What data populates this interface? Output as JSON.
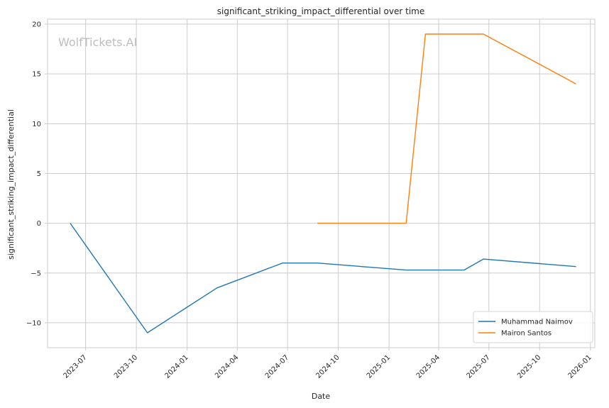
{
  "chart_data": {
    "type": "line",
    "title": "significant_striking_impact_differential over time",
    "xlabel": "Date",
    "ylabel": "significant_striking_impact_differential",
    "x_ticks": [
      "2023-07",
      "2023-10",
      "2024-01",
      "2024-04",
      "2024-07",
      "2024-10",
      "2025-01",
      "2025-04",
      "2025-07",
      "2025-10",
      "2026-01"
    ],
    "y_ticks": [
      20,
      15,
      10,
      5,
      0,
      -5,
      -10
    ],
    "y_tick_labels": [
      "20",
      "15",
      "10",
      "5",
      "0",
      "−5",
      "−10"
    ],
    "xlim": [
      "2023-04-23",
      "2026-01-09"
    ],
    "ylim": [
      -12.5,
      20.5
    ],
    "grid": true,
    "legend_position": "lower right",
    "watermark": "WolfTickets.AI",
    "series": [
      {
        "name": "Muhammad Naimov",
        "color": "#1f77b4",
        "points": [
          {
            "x": "2023-06-03",
            "y": 0
          },
          {
            "x": "2023-10-21",
            "y": -11
          },
          {
            "x": "2024-02-24",
            "y": -6.5
          },
          {
            "x": "2024-06-22",
            "y": -4
          },
          {
            "x": "2024-08-24",
            "y": -4
          },
          {
            "x": "2025-02-01",
            "y": -4.7
          },
          {
            "x": "2025-05-17",
            "y": -4.7
          },
          {
            "x": "2025-06-21",
            "y": -3.6
          },
          {
            "x": "2025-12-06",
            "y": -4.35
          }
        ]
      },
      {
        "name": "Mairon Santos",
        "color": "#ff7f0e",
        "points": [
          {
            "x": "2024-08-24",
            "y": 0
          },
          {
            "x": "2025-02-01",
            "y": 0
          },
          {
            "x": "2025-03-08",
            "y": 19
          },
          {
            "x": "2025-06-21",
            "y": 19
          },
          {
            "x": "2025-12-06",
            "y": 14
          }
        ]
      }
    ]
  }
}
